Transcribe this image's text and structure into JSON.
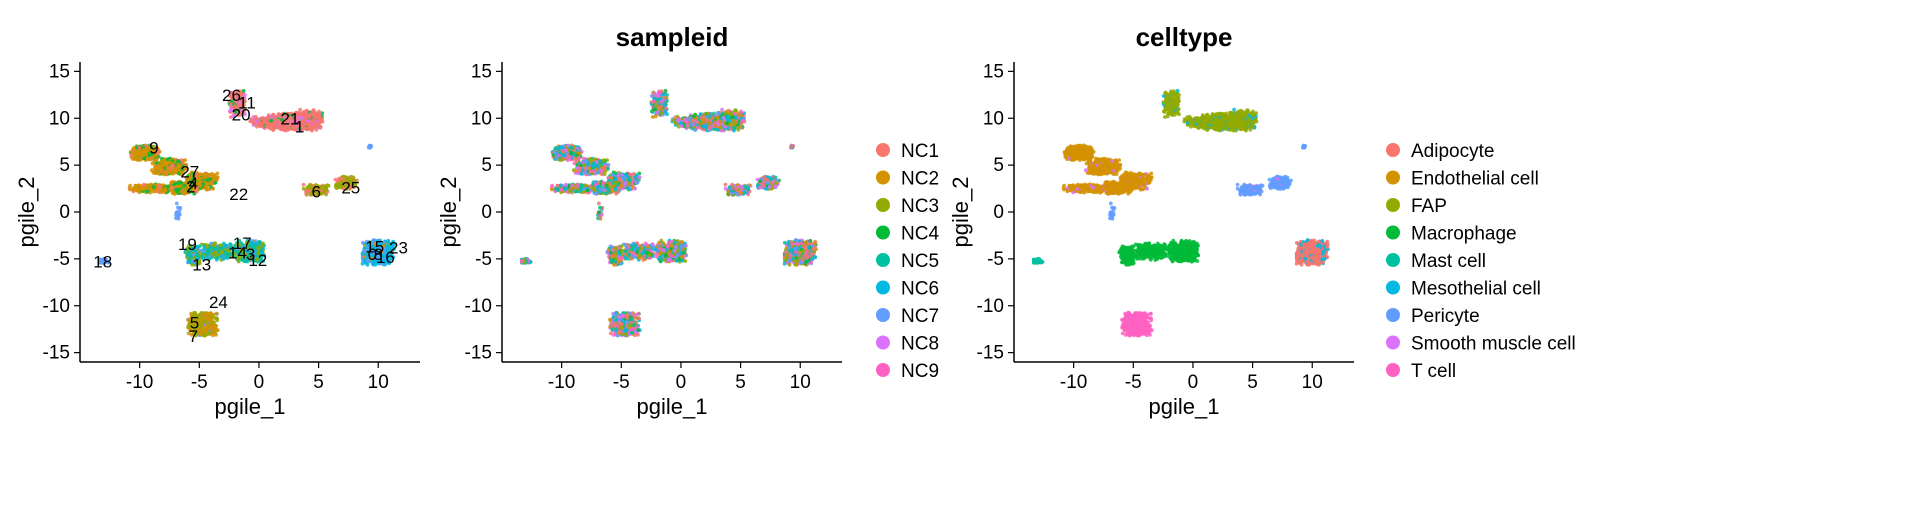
{
  "chart_data": [
    {
      "type": "scatter",
      "title": "",
      "xlabel": "pgile_1",
      "ylabel": "pgile_2",
      "xlim": [
        -15,
        13.5
      ],
      "ylim": [
        -16,
        16
      ],
      "xticks": [
        -10,
        -5,
        0,
        5,
        10
      ],
      "yticks": [
        -15,
        -10,
        -5,
        0,
        5,
        10,
        15
      ],
      "grid": false,
      "legend": "none",
      "cluster_labels": [
        {
          "text": "26",
          "x": -2.3,
          "y": 12.5
        },
        {
          "text": "11",
          "x": -1.0,
          "y": 11.7
        },
        {
          "text": "20",
          "x": -1.5,
          "y": 10.4
        },
        {
          "text": "21",
          "x": 2.6,
          "y": 10.0
        },
        {
          "text": "1",
          "x": 3.4,
          "y": 9.1
        },
        {
          "text": "9",
          "x": -8.8,
          "y": 6.9
        },
        {
          "text": "27",
          "x": -5.8,
          "y": 4.3
        },
        {
          "text": "4",
          "x": -5.5,
          "y": 3.1
        },
        {
          "text": "2",
          "x": -5.7,
          "y": 2.7
        },
        {
          "text": "22",
          "x": -1.7,
          "y": 1.9
        },
        {
          "text": "6",
          "x": 4.8,
          "y": 2.2
        },
        {
          "text": "25",
          "x": 7.7,
          "y": 2.6
        },
        {
          "text": "19",
          "x": -6.0,
          "y": -3.4
        },
        {
          "text": "17",
          "x": -1.4,
          "y": -3.3
        },
        {
          "text": "14",
          "x": -1.8,
          "y": -4.3
        },
        {
          "text": "3",
          "x": -0.7,
          "y": -4.5
        },
        {
          "text": "12",
          "x": -0.1,
          "y": -5.1
        },
        {
          "text": "13",
          "x": -4.8,
          "y": -5.6
        },
        {
          "text": "18",
          "x": -13.1,
          "y": -5.3
        },
        {
          "text": "15",
          "x": 9.7,
          "y": -3.7
        },
        {
          "text": "23",
          "x": 11.7,
          "y": -3.8
        },
        {
          "text": "0",
          "x": 9.5,
          "y": -4.5
        },
        {
          "text": "8",
          "x": 10.0,
          "y": -4.5
        },
        {
          "text": "16",
          "x": 10.6,
          "y": -4.8
        },
        {
          "text": "24",
          "x": -3.4,
          "y": -9.6
        },
        {
          "text": "5",
          "x": -5.4,
          "y": -11.8
        },
        {
          "text": "7",
          "x": -5.5,
          "y": -13.2
        }
      ]
    },
    {
      "type": "scatter",
      "title": "sampleid",
      "xlabel": "pgile_1",
      "ylabel": "pgile_2",
      "xlim": [
        -15,
        13.5
      ],
      "ylim": [
        -16,
        16
      ],
      "xticks": [
        -10,
        -5,
        0,
        5,
        10
      ],
      "yticks": [
        -15,
        -10,
        -5,
        0,
        5,
        10,
        15
      ],
      "grid": false,
      "legend": "right",
      "series": [
        {
          "name": "NC1",
          "color": "#F8766D"
        },
        {
          "name": "NC2",
          "color": "#D39200"
        },
        {
          "name": "NC3",
          "color": "#93AA00"
        },
        {
          "name": "NC4",
          "color": "#00BA38"
        },
        {
          "name": "NC5",
          "color": "#00C19F"
        },
        {
          "name": "NC6",
          "color": "#00B9E3"
        },
        {
          "name": "NC7",
          "color": "#619CFF"
        },
        {
          "name": "NC8",
          "color": "#DB72FB"
        },
        {
          "name": "NC9",
          "color": "#FF61C3"
        }
      ]
    },
    {
      "type": "scatter",
      "title": "celltype",
      "xlabel": "pgile_1",
      "ylabel": "pgile_2",
      "xlim": [
        -15,
        13.5
      ],
      "ylim": [
        -16,
        16
      ],
      "xticks": [
        -10,
        -5,
        0,
        5,
        10
      ],
      "yticks": [
        -15,
        -10,
        -5,
        0,
        5,
        10,
        15
      ],
      "grid": false,
      "legend": "right",
      "series": [
        {
          "name": "Adipocyte",
          "color": "#F8766D"
        },
        {
          "name": "Endothelial cell",
          "color": "#D39200"
        },
        {
          "name": "FAP",
          "color": "#93AA00"
        },
        {
          "name": "Macrophage",
          "color": "#00BA38"
        },
        {
          "name": "Mast cell",
          "color": "#00C19F"
        },
        {
          "name": "Mesothelial cell",
          "color": "#00B9E3"
        },
        {
          "name": "Pericyte",
          "color": "#619CFF"
        },
        {
          "name": "Smooth muscle cell",
          "color": "#DB72FB"
        },
        {
          "name": "T cell",
          "color": "#FF61C3"
        }
      ]
    }
  ]
}
